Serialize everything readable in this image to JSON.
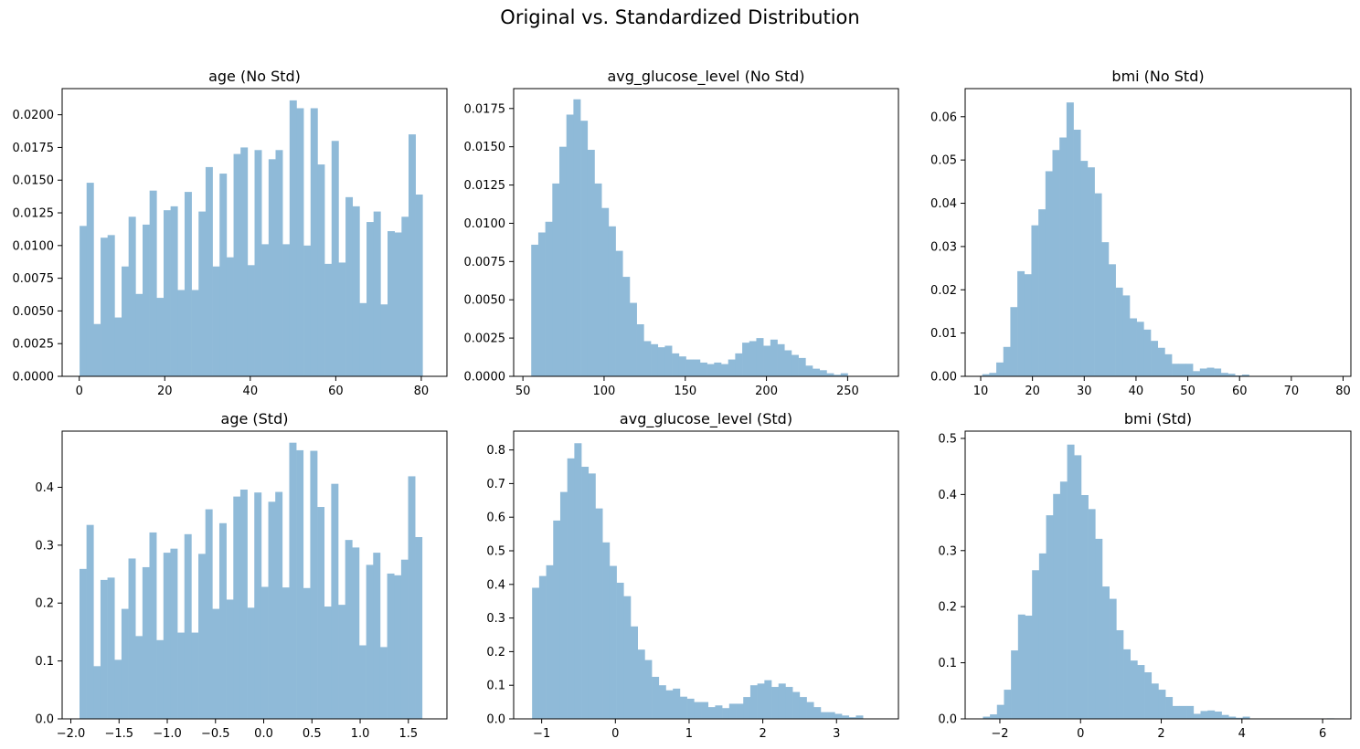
{
  "figure": {
    "suptitle": "Original vs. Standardized Distribution"
  },
  "chart_data": [
    {
      "type": "bar",
      "title": "age (No Std)",
      "bin_start": 0.08,
      "bin_width": 1.637,
      "values": [
        0.0115,
        0.0148,
        0.004,
        0.0106,
        0.0108,
        0.0045,
        0.0084,
        0.0122,
        0.0063,
        0.0116,
        0.0142,
        0.006,
        0.0127,
        0.013,
        0.0066,
        0.0141,
        0.0066,
        0.0126,
        0.016,
        0.0084,
        0.0155,
        0.0091,
        0.017,
        0.0175,
        0.0085,
        0.0173,
        0.0101,
        0.0166,
        0.0173,
        0.0101,
        0.0211,
        0.0205,
        0.01,
        0.0205,
        0.0162,
        0.0086,
        0.018,
        0.0087,
        0.0137,
        0.013,
        0.0056,
        0.0118,
        0.0126,
        0.0055,
        0.0111,
        0.011,
        0.0122,
        0.0185,
        0.0139
      ],
      "xlim": [
        -4.0,
        86.0
      ],
      "ylim": [
        0,
        0.022
      ],
      "xticks": [
        0,
        20,
        40,
        60,
        80
      ],
      "xtick_labels": [
        "0",
        "20",
        "40",
        "60",
        "80"
      ],
      "yticks": [
        0,
        0.0025,
        0.005,
        0.0075,
        0.01,
        0.0125,
        0.015,
        0.0175,
        0.02
      ],
      "ytick_labels": [
        "0.0000",
        "0.0025",
        "0.0050",
        "0.0075",
        "0.0100",
        "0.0125",
        "0.0150",
        "0.0175",
        "0.0200"
      ]
    },
    {
      "type": "bar",
      "title": "avg_glucose_level (No Std)",
      "bin_start": 55.12,
      "bin_width": 4.332,
      "values": [
        0.0086,
        0.0094,
        0.0101,
        0.0126,
        0.015,
        0.0171,
        0.0181,
        0.0167,
        0.0148,
        0.0126,
        0.011,
        0.0098,
        0.0082,
        0.0065,
        0.0048,
        0.0034,
        0.0023,
        0.0021,
        0.0019,
        0.002,
        0.0015,
        0.0013,
        0.0011,
        0.0011,
        0.0009,
        0.0008,
        0.0009,
        0.0008,
        0.0011,
        0.0015,
        0.0022,
        0.0023,
        0.0025,
        0.002,
        0.0024,
        0.0021,
        0.0017,
        0.0014,
        0.0012,
        0.0007,
        0.0005,
        0.0004,
        0.0002,
        0.0001,
        0.0002
      ],
      "xlim": [
        44.3,
        281.3
      ],
      "ylim": [
        0,
        0.0188
      ],
      "xticks": [
        50,
        100,
        150,
        200,
        250
      ],
      "xtick_labels": [
        "50",
        "100",
        "150",
        "200",
        "250"
      ],
      "yticks": [
        0,
        0.0025,
        0.005,
        0.0075,
        0.01,
        0.0125,
        0.015,
        0.0175
      ],
      "ytick_labels": [
        "0.0000",
        "0.0025",
        "0.0050",
        "0.0075",
        "0.0100",
        "0.0125",
        "0.0150",
        "0.0175"
      ]
    },
    {
      "type": "bar",
      "title": "bmi (No Std)",
      "bin_start": 10.3,
      "bin_width": 1.356,
      "values": [
        0.0005,
        0.0008,
        0.0032,
        0.0068,
        0.016,
        0.0243,
        0.0236,
        0.0349,
        0.0386,
        0.0474,
        0.0523,
        0.0552,
        0.0633,
        0.057,
        0.0498,
        0.0483,
        0.0423,
        0.031,
        0.0259,
        0.0205,
        0.0187,
        0.0134,
        0.0126,
        0.0108,
        0.0082,
        0.0066,
        0.0051,
        0.0029,
        0.0029,
        0.0029,
        0.0012,
        0.0018,
        0.002,
        0.0018,
        0.0008,
        0.0006,
        0.0002,
        0.0004,
        0,
        0,
        0,
        0,
        0,
        0,
        0,
        0,
        0,
        0,
        0,
        0.0001
      ],
      "xlim": [
        7.0,
        81.5
      ],
      "ylim": [
        0,
        0.0665
      ],
      "xticks": [
        10,
        20,
        30,
        40,
        50,
        60,
        70,
        80
      ],
      "xtick_labels": [
        "10",
        "20",
        "30",
        "40",
        "50",
        "60",
        "70",
        "80"
      ],
      "yticks": [
        0,
        0.01,
        0.02,
        0.03,
        0.04,
        0.05,
        0.06
      ],
      "ytick_labels": [
        "0.00",
        "0.01",
        "0.02",
        "0.03",
        "0.04",
        "0.05",
        "0.06"
      ]
    },
    {
      "type": "bar",
      "title": "age (Std)",
      "bin_start": -1.91,
      "bin_width": 0.0725,
      "values": [
        0.259,
        0.335,
        0.091,
        0.24,
        0.244,
        0.102,
        0.19,
        0.277,
        0.143,
        0.262,
        0.322,
        0.136,
        0.287,
        0.294,
        0.149,
        0.319,
        0.149,
        0.285,
        0.362,
        0.19,
        0.338,
        0.206,
        0.384,
        0.396,
        0.192,
        0.391,
        0.228,
        0.375,
        0.392,
        0.227,
        0.477,
        0.464,
        0.226,
        0.463,
        0.366,
        0.194,
        0.406,
        0.197,
        0.309,
        0.296,
        0.127,
        0.266,
        0.287,
        0.124,
        0.251,
        0.248,
        0.275,
        0.419,
        0.314
      ],
      "xlim": [
        -2.09,
        1.9
      ],
      "ylim": [
        0,
        0.497
      ],
      "xticks": [
        -2.0,
        -1.5,
        -1.0,
        -0.5,
        0.0,
        0.5,
        1.0,
        1.5
      ],
      "xtick_labels": [
        "−2.0",
        "−1.5",
        "−1.0",
        "−0.5",
        "0.0",
        "0.5",
        "1.0",
        "1.5"
      ],
      "yticks": [
        0,
        0.1,
        0.2,
        0.3,
        0.4
      ],
      "ytick_labels": [
        "0.0",
        "0.1",
        "0.2",
        "0.3",
        "0.4"
      ]
    },
    {
      "type": "bar",
      "title": "avg_glucose_level (Std)",
      "bin_start": -1.13,
      "bin_width": 0.0955,
      "values": [
        0.39,
        0.425,
        0.457,
        0.59,
        0.675,
        0.775,
        0.82,
        0.75,
        0.73,
        0.626,
        0.525,
        0.455,
        0.405,
        0.365,
        0.275,
        0.206,
        0.175,
        0.125,
        0.1,
        0.085,
        0.09,
        0.066,
        0.06,
        0.05,
        0.05,
        0.035,
        0.04,
        0.032,
        0.045,
        0.045,
        0.065,
        0.1,
        0.105,
        0.115,
        0.095,
        0.105,
        0.095,
        0.08,
        0.065,
        0.05,
        0.035,
        0.02,
        0.02,
        0.015,
        0.01,
        0.005,
        0.01
      ],
      "xlim": [
        -1.38,
        3.84
      ],
      "ylim": [
        0,
        0.856
      ],
      "xticks": [
        -1,
        0,
        1,
        2,
        3
      ],
      "xtick_labels": [
        "−1",
        "0",
        "1",
        "2",
        "3"
      ],
      "yticks": [
        0,
        0.1,
        0.2,
        0.3,
        0.4,
        0.5,
        0.6,
        0.7,
        0.8
      ],
      "ytick_labels": [
        "0.0",
        "0.1",
        "0.2",
        "0.3",
        "0.4",
        "0.5",
        "0.6",
        "0.7",
        "0.8"
      ]
    },
    {
      "type": "bar",
      "title": "bmi (Std)",
      "bin_start": -2.42,
      "bin_width": 0.174,
      "values": [
        0.004,
        0.008,
        0.025,
        0.052,
        0.122,
        0.186,
        0.184,
        0.265,
        0.295,
        0.363,
        0.401,
        0.423,
        0.489,
        0.47,
        0.399,
        0.374,
        0.321,
        0.236,
        0.214,
        0.158,
        0.124,
        0.104,
        0.096,
        0.083,
        0.063,
        0.052,
        0.039,
        0.023,
        0.023,
        0.023,
        0.009,
        0.014,
        0.015,
        0.013,
        0.007,
        0.004,
        0.002,
        0.004,
        0,
        0,
        0,
        0,
        0,
        0,
        0,
        0,
        0,
        0,
        0,
        0.001
      ],
      "xlim": [
        -2.86,
        6.7
      ],
      "ylim": [
        0,
        0.513
      ],
      "xticks": [
        -2,
        0,
        2,
        4,
        6
      ],
      "xtick_labels": [
        "−2",
        "0",
        "2",
        "4",
        "6"
      ],
      "yticks": [
        0,
        0.1,
        0.2,
        0.3,
        0.4,
        0.5
      ],
      "ytick_labels": [
        "0.0",
        "0.1",
        "0.2",
        "0.3",
        "0.4",
        "0.5"
      ]
    }
  ]
}
